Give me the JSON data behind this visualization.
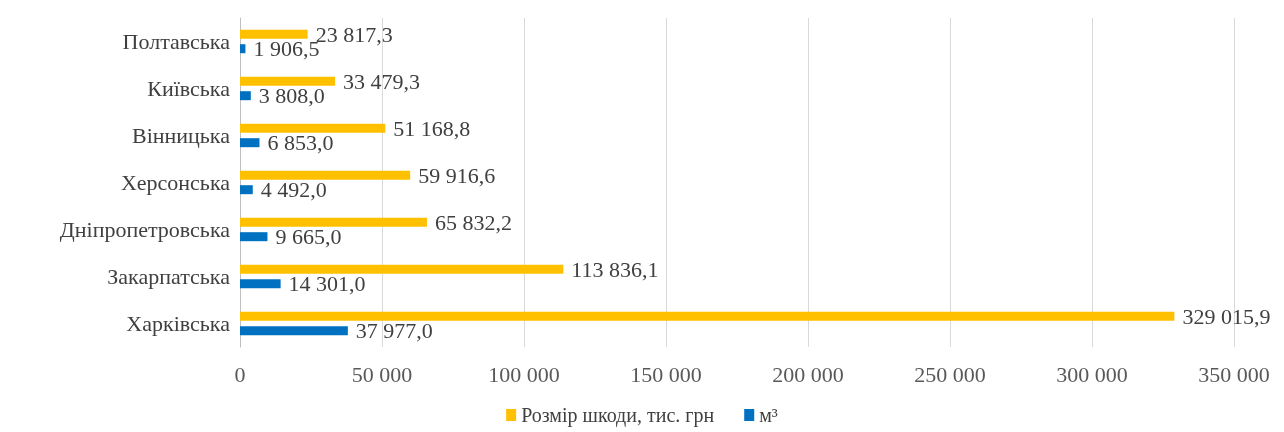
{
  "chart_data": {
    "type": "bar",
    "orientation": "horizontal",
    "categories": [
      "Полтавська",
      "Київська",
      "Вінницька",
      "Херсонська",
      "Дніпропетровська",
      "Закарпатська",
      "Харківська"
    ],
    "series": [
      {
        "name": "Розмір шкоди, тис. грн",
        "color": "#ffc000",
        "values": [
          23817.3,
          33479.3,
          51168.8,
          59916.6,
          65832.2,
          113836.1,
          329015.9
        ],
        "value_labels": [
          "23 817,3",
          "33 479,3",
          "51 168,8",
          "59 916,6",
          "65 832,2",
          "113 836,1",
          "329 015,9"
        ]
      },
      {
        "name": "м³",
        "color": "#0070c0",
        "values": [
          1906.5,
          3808.0,
          6853.0,
          4492.0,
          9665.0,
          14301.0,
          37977.0
        ],
        "value_labels": [
          "1 906,5",
          "3 808,0",
          "6 853,0",
          "4 492,0",
          "9 665,0",
          "14 301,0",
          "37 977,0"
        ]
      }
    ],
    "xlim": [
      0,
      350000
    ],
    "xticks": [
      0,
      {
        "value": 50000,
        "label": "50 000"
      },
      {
        "value": 100000,
        "label": "100 000"
      },
      {
        "value": 150000,
        "label": "150 000"
      },
      {
        "value": 200000,
        "label": "200 000"
      },
      {
        "value": 250000,
        "label": "250 000"
      },
      {
        "value": 300000,
        "label": "300 000"
      },
      {
        "value": 350000,
        "label": "350 000"
      }
    ],
    "grid": "x",
    "legend": "bottom"
  }
}
